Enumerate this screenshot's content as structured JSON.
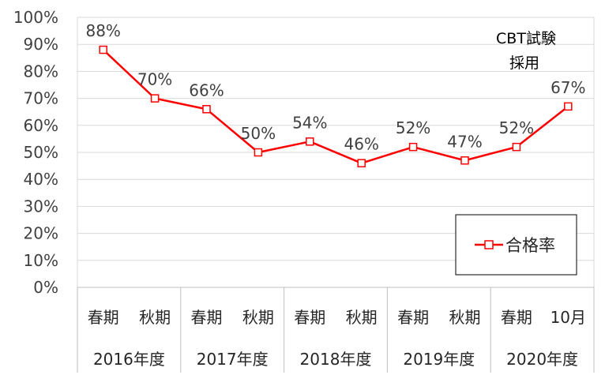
{
  "chart_data": {
    "type": "line",
    "categories": [
      "春期",
      "秋期",
      "春期",
      "秋期",
      "春期",
      "秋期",
      "春期",
      "秋期",
      "春期",
      "10月"
    ],
    "groups": [
      {
        "label": "2016年度",
        "span": 2
      },
      {
        "label": "2017年度",
        "span": 2
      },
      {
        "label": "2018年度",
        "span": 2
      },
      {
        "label": "2019年度",
        "span": 2
      },
      {
        "label": "2020年度",
        "span": 2
      }
    ],
    "series": [
      {
        "name": "合格率",
        "values": [
          88,
          70,
          66,
          50,
          54,
          46,
          52,
          47,
          52,
          67
        ],
        "labels": [
          "88%",
          "70%",
          "66%",
          "50%",
          "54%",
          "46%",
          "52%",
          "47%",
          "52%",
          "67%"
        ],
        "color": "#ff0000",
        "marker": "square-hollow"
      }
    ],
    "yticks": [
      "0%",
      "10%",
      "20%",
      "30%",
      "40%",
      "50%",
      "60%",
      "70%",
      "80%",
      "90%",
      "100%"
    ],
    "ylim": [
      0,
      100
    ],
    "grid": true,
    "legend": "bottom-right",
    "annotation": {
      "line1": "CBT試験",
      "line2": "採用"
    }
  }
}
